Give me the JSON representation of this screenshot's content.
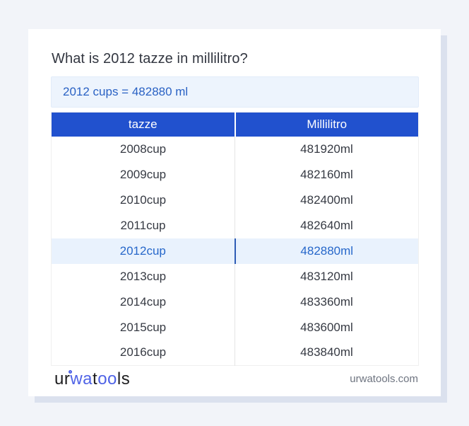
{
  "page": {
    "title": "What is 2012 tazze in millilitro?",
    "answer_text": "2012 cups = 482880 ml"
  },
  "table": {
    "headers": [
      "tazze",
      "Millilitro"
    ],
    "rows": [
      {
        "cups": "2008cup",
        "ml": "481920ml",
        "highlight": false
      },
      {
        "cups": "2009cup",
        "ml": "482160ml",
        "highlight": false
      },
      {
        "cups": "2010cup",
        "ml": "482400ml",
        "highlight": false
      },
      {
        "cups": "2011cup",
        "ml": "482640ml",
        "highlight": false
      },
      {
        "cups": "2012cup",
        "ml": "482880ml",
        "highlight": true
      },
      {
        "cups": "2013cup",
        "ml": "483120ml",
        "highlight": false
      },
      {
        "cups": "2014cup",
        "ml": "483360ml",
        "highlight": false
      },
      {
        "cups": "2015cup",
        "ml": "483600ml",
        "highlight": false
      },
      {
        "cups": "2016cup",
        "ml": "483840ml",
        "highlight": false
      }
    ]
  },
  "footer": {
    "logo": {
      "p1": "ur",
      "p2": "wa",
      "p3": "t",
      "p4": "oo",
      "p5": "ls"
    },
    "site_url_text": "urwatools.com"
  },
  "colors": {
    "page_bg": "#f2f4f9",
    "header_blue": "#2151ce",
    "answer_bg": "#edf4fd",
    "highlight_bg": "#e9f2fd",
    "link_blue": "#2a62c4",
    "logo_blue": "#4f63e6"
  }
}
